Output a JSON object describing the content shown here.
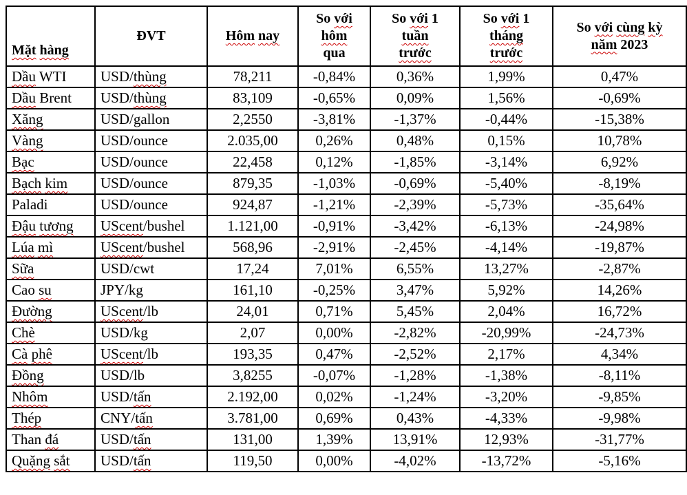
{
  "colors": {
    "grid": "#000000",
    "text": "#000000",
    "spellcheck_underline": "#cc0000",
    "background": "#ffffff"
  },
  "table": {
    "headers": [
      {
        "id": "commodity",
        "lines": [
          [
            [
              "Mặt",
              1
            ],
            [
              " ",
              0
            ],
            [
              "hàng",
              1
            ]
          ]
        ]
      },
      {
        "id": "unit",
        "lines": [
          [
            [
              "ĐVT",
              0
            ]
          ]
        ]
      },
      {
        "id": "today",
        "lines": [
          [
            [
              "Hôm",
              1
            ],
            [
              " ",
              0
            ],
            [
              "nay",
              1
            ]
          ]
        ]
      },
      {
        "id": "vs-yesterday",
        "lines": [
          [
            [
              "So ",
              0
            ],
            [
              "với",
              1
            ]
          ],
          [
            [
              "hôm",
              1
            ]
          ],
          [
            [
              "qua",
              0
            ]
          ]
        ]
      },
      {
        "id": "vs-1-week",
        "lines": [
          [
            [
              "So ",
              0
            ],
            [
              "với",
              1
            ],
            [
              " 1",
              0
            ]
          ],
          [
            [
              "tuần",
              1
            ]
          ],
          [
            [
              "trước",
              1
            ]
          ]
        ]
      },
      {
        "id": "vs-1-month",
        "lines": [
          [
            [
              "So ",
              0
            ],
            [
              "với",
              1
            ],
            [
              " 1",
              0
            ]
          ],
          [
            [
              "tháng",
              1
            ]
          ],
          [
            [
              "trước",
              1
            ]
          ]
        ]
      },
      {
        "id": "vs-2023",
        "lines": [
          [
            [
              "So ",
              0
            ],
            [
              "với",
              1
            ],
            [
              " ",
              0
            ],
            [
              "cùng",
              1
            ],
            [
              " ",
              0
            ],
            [
              "kỳ",
              1
            ]
          ],
          [
            [
              "năm",
              1
            ],
            [
              " 2023",
              0
            ]
          ]
        ]
      }
    ],
    "rows": [
      {
        "commodity": [
          [
            "Dầu",
            1
          ],
          [
            " WTI",
            0
          ]
        ],
        "unit": [
          [
            "USD/",
            0
          ],
          [
            "thùng",
            1
          ]
        ],
        "today": "78,211",
        "vs_yesterday": "-0,84%",
        "vs_week": "0,36%",
        "vs_month": "1,99%",
        "vs_2023": "0,47%"
      },
      {
        "commodity": [
          [
            "Dầu",
            1
          ],
          [
            " Brent",
            0
          ]
        ],
        "unit": [
          [
            "USD/",
            0
          ],
          [
            "thùng",
            1
          ]
        ],
        "today": "83,109",
        "vs_yesterday": "-0,65%",
        "vs_week": "0,09%",
        "vs_month": "1,56%",
        "vs_2023": "-0,69%"
      },
      {
        "commodity": [
          [
            "Xăng",
            1
          ]
        ],
        "unit": [
          [
            "USD/gallon",
            0
          ]
        ],
        "today": "2,2550",
        "vs_yesterday": "-3,81%",
        "vs_week": "-1,37%",
        "vs_month": "-0,44%",
        "vs_2023": "-15,38%"
      },
      {
        "commodity": [
          [
            "Vàng",
            1
          ]
        ],
        "unit": [
          [
            "USD/ounce",
            0
          ]
        ],
        "today": "2.035,00",
        "vs_yesterday": "0,26%",
        "vs_week": "0,48%",
        "vs_month": "0,15%",
        "vs_2023": "10,78%"
      },
      {
        "commodity": [
          [
            "Bạc",
            1
          ]
        ],
        "unit": [
          [
            "USD/ounce",
            0
          ]
        ],
        "today": "22,458",
        "vs_yesterday": "0,12%",
        "vs_week": "-1,85%",
        "vs_month": "-3,14%",
        "vs_2023": "6,92%"
      },
      {
        "commodity": [
          [
            "Bạch",
            1
          ],
          [
            " ",
            0
          ],
          [
            "kim",
            1
          ]
        ],
        "unit": [
          [
            "USD/ounce",
            0
          ]
        ],
        "today": "879,35",
        "vs_yesterday": "-1,03%",
        "vs_week": "-0,69%",
        "vs_month": "-5,40%",
        "vs_2023": "-8,19%"
      },
      {
        "commodity": [
          [
            "Paladi",
            0
          ]
        ],
        "unit": [
          [
            "USD/ounce",
            0
          ]
        ],
        "today": "924,87",
        "vs_yesterday": "-1,21%",
        "vs_week": "-2,39%",
        "vs_month": "-5,73%",
        "vs_2023": "-35,64%"
      },
      {
        "commodity": [
          [
            "Đậu",
            1
          ],
          [
            " ",
            0
          ],
          [
            "tương",
            1
          ]
        ],
        "unit": [
          [
            "UScent",
            1
          ],
          [
            "/bushel",
            0
          ]
        ],
        "today": "1.121,00",
        "vs_yesterday": "-0,91%",
        "vs_week": "-3,42%",
        "vs_month": "-6,13%",
        "vs_2023": "-24,98%"
      },
      {
        "commodity": [
          [
            "Lúa",
            1
          ],
          [
            " ",
            0
          ],
          [
            "mì",
            1
          ]
        ],
        "unit": [
          [
            "UScent",
            1
          ],
          [
            "/bushel",
            0
          ]
        ],
        "today": "568,96",
        "vs_yesterday": "-2,91%",
        "vs_week": "-2,45%",
        "vs_month": "-4,14%",
        "vs_2023": "-19,87%"
      },
      {
        "commodity": [
          [
            "Sữa",
            1
          ]
        ],
        "unit": [
          [
            "USD/cwt",
            0
          ]
        ],
        "today": "17,24",
        "vs_yesterday": "7,01%",
        "vs_week": "6,55%",
        "vs_month": "13,27%",
        "vs_2023": "-2,87%"
      },
      {
        "commodity": [
          [
            "Cao ",
            0
          ],
          [
            "su",
            1
          ]
        ],
        "unit": [
          [
            "JPY/kg",
            0
          ]
        ],
        "today": "161,10",
        "vs_yesterday": "-0,25%",
        "vs_week": "3,47%",
        "vs_month": "5,92%",
        "vs_2023": "14,26%"
      },
      {
        "commodity": [
          [
            "Đường",
            1
          ]
        ],
        "unit": [
          [
            "UScent",
            1
          ],
          [
            "/lb",
            0
          ]
        ],
        "today": "24,01",
        "vs_yesterday": "0,71%",
        "vs_week": "5,45%",
        "vs_month": "2,04%",
        "vs_2023": "16,72%"
      },
      {
        "commodity": [
          [
            "Chè",
            1
          ]
        ],
        "unit": [
          [
            "USD/kg",
            0
          ]
        ],
        "today": "2,07",
        "vs_yesterday": "0,00%",
        "vs_week": "-2,82%",
        "vs_month": "-20,99%",
        "vs_2023": "-24,73%"
      },
      {
        "commodity": [
          [
            "Cà",
            1
          ],
          [
            " ",
            0
          ],
          [
            "phê",
            1
          ]
        ],
        "unit": [
          [
            "UScent",
            1
          ],
          [
            "/lb",
            0
          ]
        ],
        "today": "193,35",
        "vs_yesterday": "0,47%",
        "vs_week": "-2,52%",
        "vs_month": "2,17%",
        "vs_2023": "4,34%"
      },
      {
        "commodity": [
          [
            "Đồng",
            1
          ]
        ],
        "unit": [
          [
            "USD/lb",
            0
          ]
        ],
        "today": "3,8255",
        "vs_yesterday": "-0,07%",
        "vs_week": "-1,28%",
        "vs_month": "-1,38%",
        "vs_2023": "-8,11%"
      },
      {
        "commodity": [
          [
            "Nhôm",
            1
          ]
        ],
        "unit": [
          [
            "USD/",
            0
          ],
          [
            "tấn",
            1
          ]
        ],
        "today": "2.192,00",
        "vs_yesterday": "0,02%",
        "vs_week": "-1,24%",
        "vs_month": "-3,20%",
        "vs_2023": "-9,85%"
      },
      {
        "commodity": [
          [
            "Thép",
            1
          ]
        ],
        "unit": [
          [
            "CNY/",
            0
          ],
          [
            "tấn",
            1
          ]
        ],
        "today": "3.781,00",
        "vs_yesterday": "0,69%",
        "vs_week": "0,43%",
        "vs_month": "-4,33%",
        "vs_2023": "-9,98%"
      },
      {
        "commodity": [
          [
            "Than ",
            0
          ],
          [
            "đá",
            1
          ]
        ],
        "unit": [
          [
            "USD/",
            0
          ],
          [
            "tấn",
            1
          ]
        ],
        "today": "131,00",
        "vs_yesterday": "1,39%",
        "vs_week": "13,91%",
        "vs_month": "12,93%",
        "vs_2023": "-31,77%"
      },
      {
        "commodity": [
          [
            "Quặng",
            1
          ],
          [
            " ",
            0
          ],
          [
            "sắt",
            1
          ]
        ],
        "unit": [
          [
            "USD/",
            0
          ],
          [
            "tấn",
            1
          ]
        ],
        "today": "119,50",
        "vs_yesterday": "0,00%",
        "vs_week": "-4,02%",
        "vs_month": "-13,72%",
        "vs_2023": "-5,16%"
      }
    ]
  }
}
